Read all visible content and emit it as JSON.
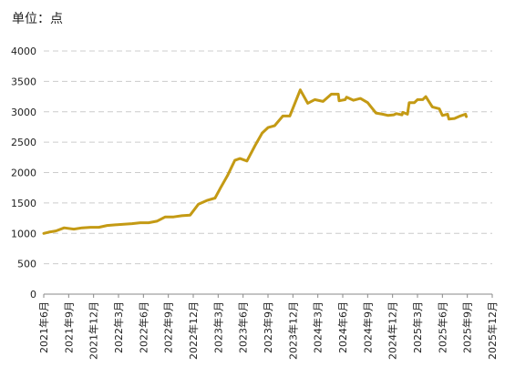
{
  "header": {
    "unit": "单位：点"
  },
  "chart_data": {
    "type": "line",
    "title": "",
    "xlabel": "",
    "ylabel": "",
    "ylim": [
      0,
      4000
    ],
    "yticks": [
      0,
      500,
      1000,
      1500,
      2000,
      2500,
      3000,
      3500,
      4000
    ],
    "xlim": [
      "2021-06",
      "2025-12"
    ],
    "grid": "horizontal-dashed",
    "line_color": "#C49A14",
    "grid_color": "#cccccc",
    "xtick_labels": [
      "2021年6月",
      "2021年9月",
      "2021年12月",
      "2022年3月",
      "2022年6月",
      "2022年9月",
      "2022年12月",
      "2023年3月",
      "2023年6月",
      "2023年9月",
      "2023年12月",
      "2024年3月",
      "2024年6月",
      "2024年9月",
      "2024年12月",
      "2025年3月",
      "2025年6月",
      "2025年9月",
      "2025年12月"
    ],
    "series": [
      {
        "name": "",
        "points": [
          [
            "2021-06-01",
            1000
          ],
          [
            "2021-06-20",
            1020
          ],
          [
            "2021-07-15",
            1040
          ],
          [
            "2021-08-15",
            1090
          ],
          [
            "2021-09-20",
            1070
          ],
          [
            "2021-10-20",
            1090
          ],
          [
            "2021-11-20",
            1100
          ],
          [
            "2021-12-20",
            1100
          ],
          [
            "2022-01-20",
            1130
          ],
          [
            "2022-02-20",
            1140
          ],
          [
            "2022-03-20",
            1150
          ],
          [
            "2022-04-20",
            1160
          ],
          [
            "2022-05-20",
            1175
          ],
          [
            "2022-06-20",
            1175
          ],
          [
            "2022-07-20",
            1200
          ],
          [
            "2022-08-20",
            1270
          ],
          [
            "2022-09-20",
            1270
          ],
          [
            "2022-10-20",
            1290
          ],
          [
            "2022-11-20",
            1300
          ],
          [
            "2022-12-20",
            1480
          ],
          [
            "2023-01-20",
            1540
          ],
          [
            "2023-02-20",
            1580
          ],
          [
            "2023-03-10",
            1750
          ],
          [
            "2023-04-05",
            1950
          ],
          [
            "2023-05-01",
            2200
          ],
          [
            "2023-05-20",
            2230
          ],
          [
            "2023-06-15",
            2190
          ],
          [
            "2023-07-15",
            2450
          ],
          [
            "2023-08-10",
            2650
          ],
          [
            "2023-09-01",
            2740
          ],
          [
            "2023-09-25",
            2770
          ],
          [
            "2023-10-25",
            2930
          ],
          [
            "2023-11-20",
            2930
          ],
          [
            "2023-12-28",
            3360
          ],
          [
            "2024-01-25",
            3140
          ],
          [
            "2024-02-20",
            3200
          ],
          [
            "2024-03-20",
            3170
          ],
          [
            "2024-04-20",
            3290
          ],
          [
            "2024-05-15",
            3290
          ],
          [
            "2024-05-18",
            3180
          ],
          [
            "2024-06-10",
            3200
          ],
          [
            "2024-06-15",
            3240
          ],
          [
            "2024-07-10",
            3190
          ],
          [
            "2024-08-05",
            3220
          ],
          [
            "2024-09-01",
            3150
          ],
          [
            "2024-10-01",
            2980
          ],
          [
            "2024-10-25",
            2960
          ],
          [
            "2024-11-15",
            2940
          ],
          [
            "2024-12-05",
            2950
          ],
          [
            "2024-12-15",
            2970
          ],
          [
            "2025-01-05",
            2950
          ],
          [
            "2025-01-08",
            2990
          ],
          [
            "2025-01-25",
            2960
          ],
          [
            "2025-02-01",
            3150
          ],
          [
            "2025-02-20",
            3150
          ],
          [
            "2025-03-01",
            3200
          ],
          [
            "2025-03-20",
            3200
          ],
          [
            "2025-04-01",
            3250
          ],
          [
            "2025-04-25",
            3080
          ],
          [
            "2025-05-20",
            3050
          ],
          [
            "2025-06-01",
            2940
          ],
          [
            "2025-06-20",
            2960
          ],
          [
            "2025-06-25",
            2880
          ],
          [
            "2025-07-15",
            2890
          ],
          [
            "2025-08-05",
            2930
          ],
          [
            "2025-08-25",
            2960
          ],
          [
            "2025-08-28",
            2920
          ]
        ]
      }
    ]
  }
}
